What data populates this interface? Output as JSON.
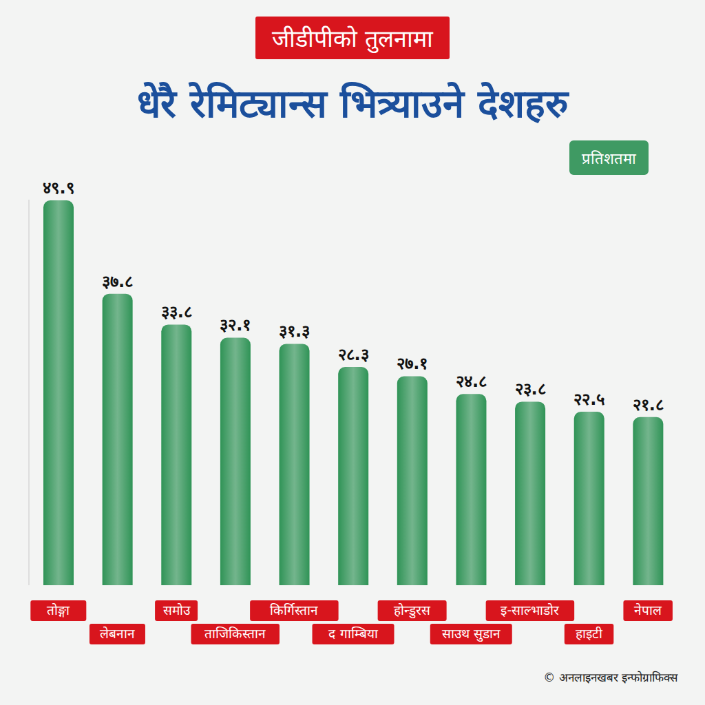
{
  "chart_data": {
    "type": "bar",
    "title": "धेरै रेमिट्यान्स भित्र्याउने देशहरु",
    "subtitle": "जीडीपीको तुलनामा",
    "ylabel": "प्रतिशतमा",
    "source": "© अनलाइनखबर इन्फोग्राफिक्स",
    "categories": [
      "तोङ्गा",
      "लेबनान",
      "समोउ",
      "ताजिकिस्तान",
      "किर्गिस्तान",
      "द गाम्बिया",
      "होन्डुरस",
      "साउथ सुडान",
      "इ-साल्भाडोर",
      "हाइटी",
      "नेपाल"
    ],
    "values": [
      49.9,
      37.8,
      33.8,
      32.1,
      31.3,
      28.3,
      27.1,
      24.8,
      23.8,
      22.5,
      21.8
    ],
    "value_labels": [
      "४९.९",
      "३७.८",
      "३३.८",
      "३२.१",
      "३१.३",
      "२८.३",
      "२७.१",
      "२४.८",
      "२३.८",
      "२२.५",
      "२१.८"
    ],
    "color": "#2f9356",
    "ylim": [
      0,
      50
    ],
    "grid": false,
    "data_labels": true,
    "tick_labels": "x"
  }
}
